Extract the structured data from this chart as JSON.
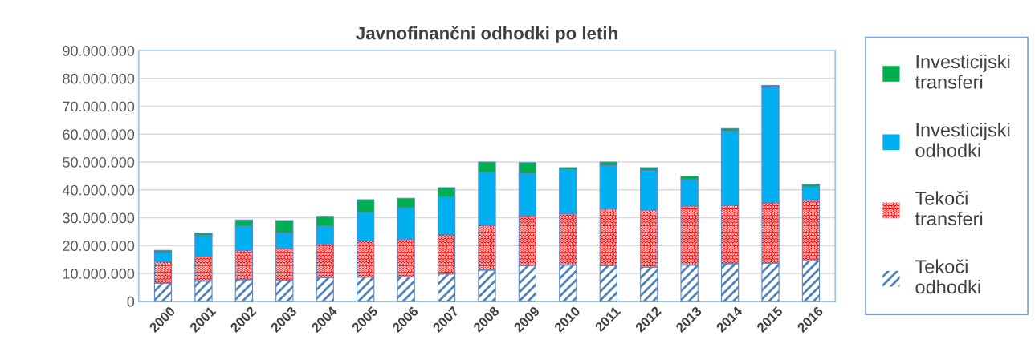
{
  "chart_data": {
    "type": "bar",
    "title": "Javnofinančni odhodki po letih",
    "stacked": true,
    "categories": [
      "2000",
      "2001",
      "2002",
      "2003",
      "2004",
      "2005",
      "2006",
      "2007",
      "2008",
      "2009",
      "2010",
      "2011",
      "2012",
      "2013",
      "2014",
      "2015",
      "2016"
    ],
    "series": [
      {
        "name": "Tekoči odhodki",
        "color": "#4f81bd",
        "values": [
          6500000,
          7200000,
          7700000,
          7500000,
          8500000,
          8700000,
          8800000,
          9800000,
          11200000,
          12800000,
          13000000,
          12800000,
          12200000,
          13000000,
          13500000,
          13700000,
          14500000
        ]
      },
      {
        "name": "Tekoči transferi",
        "color": "#ff0000",
        "values": [
          7800000,
          9000000,
          10500000,
          11500000,
          12200000,
          13000000,
          13400000,
          14200000,
          16100000,
          17900000,
          18400000,
          20300000,
          20600000,
          21200000,
          21000000,
          21600000,
          21800000
        ]
      },
      {
        "name": "Investicijski odhodki",
        "color": "#00b0f0",
        "values": [
          3200000,
          7300000,
          8800000,
          5500000,
          6300000,
          10100000,
          11300000,
          13500000,
          18900000,
          15100000,
          15900000,
          15600000,
          14200000,
          9500000,
          26500000,
          41700000,
          4700000
        ]
      },
      {
        "name": "Investicijski transferi",
        "color": "#00b050",
        "values": [
          800000,
          1000000,
          2200000,
          4500000,
          3500000,
          4700000,
          3500000,
          3300000,
          3800000,
          4000000,
          700000,
          1300000,
          1000000,
          1300000,
          1000000,
          500000,
          1000000
        ]
      }
    ],
    "ylim": [
      0,
      90000000
    ],
    "yticks": [
      {
        "value": 0,
        "label": "0"
      },
      {
        "value": 10000000,
        "label": "10.000.000"
      },
      {
        "value": 20000000,
        "label": "20.000.000"
      },
      {
        "value": 30000000,
        "label": "30.000.000"
      },
      {
        "value": 40000000,
        "label": "40.000.000"
      },
      {
        "value": 50000000,
        "label": "50.000.000"
      },
      {
        "value": 60000000,
        "label": "60.000.000"
      },
      {
        "value": 70000000,
        "label": "70.000.000"
      },
      {
        "value": 80000000,
        "label": "80.000.000"
      },
      {
        "value": 90000000,
        "label": "90.000.000"
      }
    ],
    "grid": "y",
    "legend": "right"
  }
}
